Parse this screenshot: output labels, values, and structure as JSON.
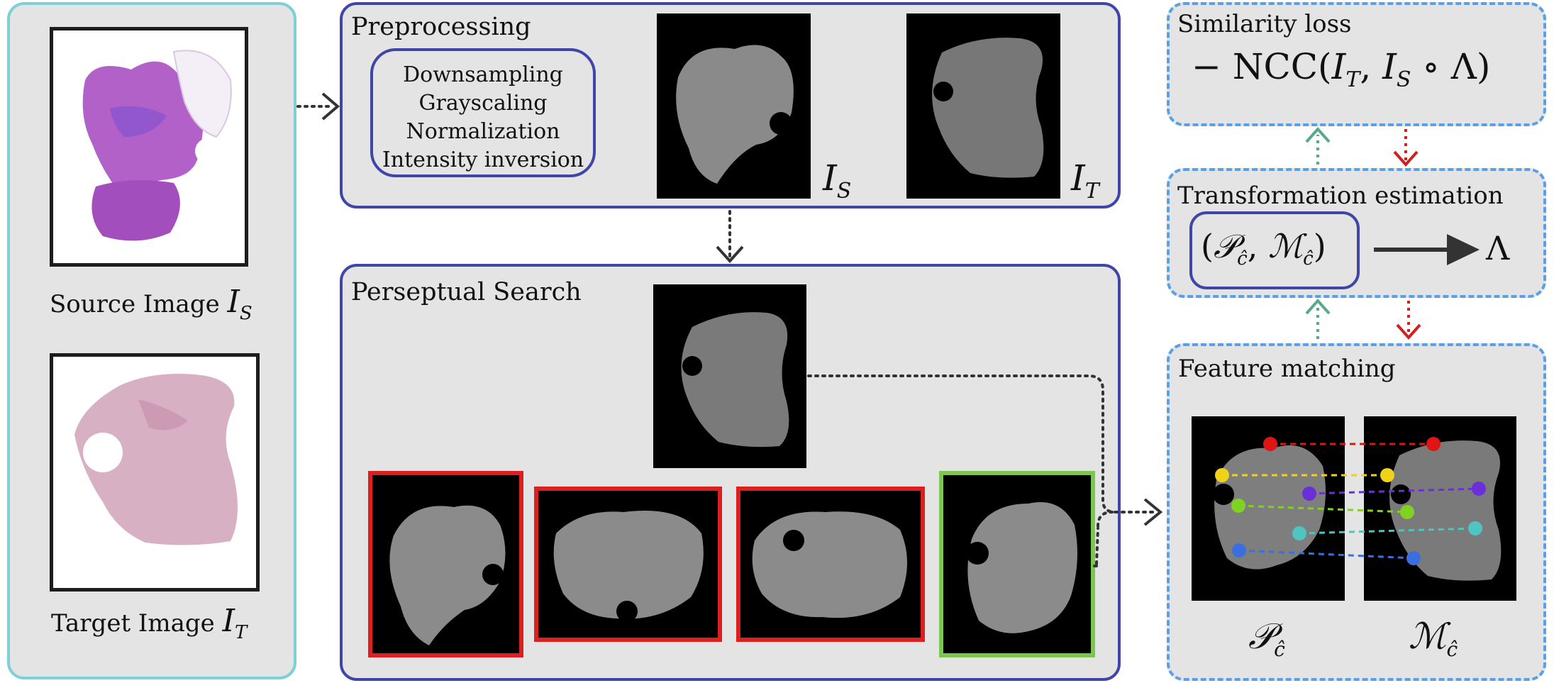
{
  "panels": {
    "inputs": {
      "source_caption": "Source Image",
      "target_caption": "Target Image",
      "source_symbol": "I",
      "source_sub": "S",
      "target_symbol": "I",
      "target_sub": "T"
    },
    "preprocessing": {
      "title": "Preprocessing",
      "steps": [
        "Downsampling",
        "Grayscaling",
        "Normalization",
        "Intensity inversion"
      ],
      "label_s": "I",
      "label_s_sub": "S",
      "label_t": "I",
      "label_t_sub": "T"
    },
    "search": {
      "title": "Perseptual Search"
    },
    "similarity": {
      "title": "Similarity loss",
      "formula": "− NCC(I_T, I_S ∘ Λ)"
    },
    "transformation": {
      "title": "Transformation estimation",
      "pair": "(𝒫_ĉ, ℳ_ĉ)",
      "output": "Λ"
    },
    "matching": {
      "title": "Feature matching",
      "label_left": "𝒫",
      "label_left_sub": "ĉ",
      "label_right": "ℳ",
      "label_right_sub": "ĉ"
    }
  },
  "colors": {
    "teal_border": "#7fcfd6",
    "indigo_border": "#3f46a8",
    "dashed_border": "#5aa0e6",
    "reject_frame": "#dc1f1f",
    "accept_frame": "#7cc54e",
    "up_arrow": "#5aa88a",
    "down_arrow": "#d21f1f",
    "keypoints": [
      "#e01414",
      "#f0d21a",
      "#6a2fd6",
      "#7ed321",
      "#4fc4c0",
      "#3a6fe0"
    ]
  }
}
